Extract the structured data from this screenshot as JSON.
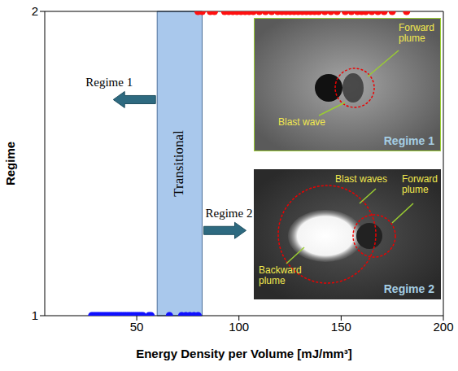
{
  "chart_data": {
    "type": "scatter",
    "xlabel": "Energy Density per Volume [mJ/mm³]",
    "ylabel": "Regime",
    "xlim": [
      5,
      200
    ],
    "ylim": [
      1,
      2
    ],
    "xticks": [
      50,
      100,
      150,
      200
    ],
    "yticks": [
      1,
      2
    ],
    "series": [
      {
        "color": "#1010ff",
        "marker": "circle",
        "x": [
          28,
          29,
          30,
          31,
          32,
          33,
          34,
          35,
          36,
          37,
          38,
          39,
          40,
          41,
          42,
          43,
          44,
          45,
          46,
          47,
          48,
          49,
          50,
          51,
          52,
          53,
          56,
          57,
          66,
          72,
          74,
          76,
          78,
          80
        ],
        "values": [
          1,
          1,
          1,
          1,
          1,
          1,
          1,
          1,
          1,
          1,
          1,
          1,
          1,
          1,
          1,
          1,
          1,
          1,
          1,
          1,
          1,
          1,
          1,
          1,
          1,
          1,
          1,
          1,
          1,
          1,
          1,
          1,
          1,
          1
        ]
      },
      {
        "color": "#ff1010",
        "marker": "circle",
        "x": [
          80,
          82,
          86,
          88,
          93,
          95,
          97,
          99,
          101,
          103,
          105,
          107,
          110,
          113,
          116,
          119,
          121,
          123,
          125,
          127,
          129,
          131,
          133,
          135,
          137,
          139,
          142,
          145,
          148,
          152,
          155,
          158,
          160,
          162,
          165,
          168,
          171,
          175,
          182
        ],
        "values": [
          2,
          2,
          2,
          2,
          2,
          2,
          2,
          2,
          2,
          2,
          2,
          2,
          2,
          2,
          2,
          2,
          2,
          2,
          2,
          2,
          2,
          2,
          2,
          2,
          2,
          2,
          2,
          2,
          2,
          2,
          2,
          2,
          2,
          2,
          2,
          2,
          2,
          2,
          2
        ]
      }
    ],
    "annotations": {
      "transitional": {
        "text": "Transitional",
        "x_range": [
          60,
          82
        ]
      },
      "arrows": [
        {
          "text": "Regime 1",
          "direction": "left"
        },
        {
          "text": "Regime 2",
          "direction": "right"
        }
      ],
      "insets": [
        {
          "title": "Regime 1",
          "labels": [
            "Forward plume",
            "Blast wave"
          ]
        },
        {
          "title": "Regime 2",
          "labels": [
            "Blast waves",
            "Forward plume",
            "Backward plume"
          ]
        }
      ]
    }
  }
}
